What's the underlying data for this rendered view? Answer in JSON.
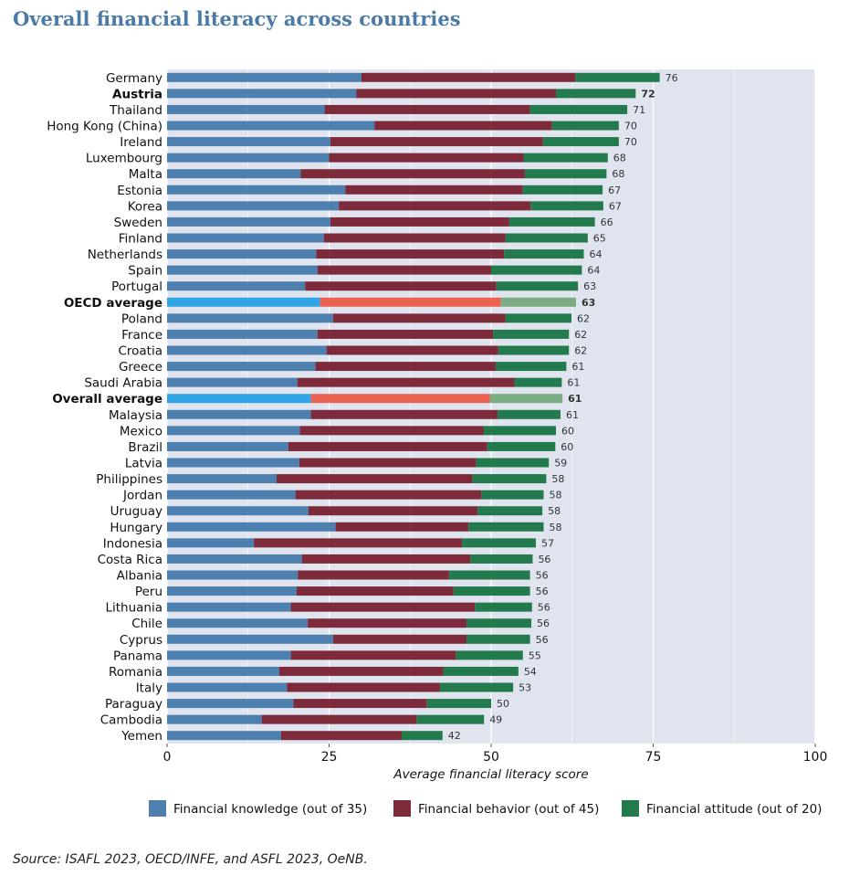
{
  "title": "Overall financial literacy across countries",
  "source": "Source: ISAFL 2023, OECD/INFE, and ASFL 2023, OeNB.",
  "colors": {
    "background_panel": "#dfe4ef",
    "knowledge": "#4d7faf",
    "behavior": "#7d2a3a",
    "attitude": "#237a4c",
    "knowledge_highlight": "#30a6e6",
    "behavior_highlight": "#ec6351",
    "attitude_highlight": "#7bac84"
  },
  "chart_data": {
    "type": "bar",
    "orientation": "horizontal",
    "stacked": true,
    "title": "Overall financial literacy across countries",
    "xlabel": "Average financial literacy score",
    "ylabel": "",
    "xlim": [
      0,
      100
    ],
    "xticks": [
      0,
      25,
      50,
      75,
      100
    ],
    "grid": true,
    "legend_position": "bottom",
    "categories": [
      "Germany",
      "Austria",
      "Thailand",
      "Hong Kong (China)",
      "Ireland",
      "Luxembourg",
      "Malta",
      "Estonia",
      "Korea",
      "Sweden",
      "Finland",
      "Netherlands",
      "Spain",
      "Portugal",
      "OECD average",
      "Poland",
      "France",
      "Croatia",
      "Greece",
      "Saudi Arabia",
      "Overall average",
      "Malaysia",
      "Mexico",
      "Brazil",
      "Latvia",
      "Philippines",
      "Jordan",
      "Uruguay",
      "Hungary",
      "Indonesia",
      "Costa Rica",
      "Albania",
      "Peru",
      "Lithuania",
      "Chile",
      "Cyprus",
      "Panama",
      "Romania",
      "Italy",
      "Paraguay",
      "Cambodia",
      "Yemen"
    ],
    "bold_categories": [
      "Austria",
      "OECD average",
      "Overall average"
    ],
    "highlight_categories": [
      "OECD average",
      "Overall average"
    ],
    "series": [
      {
        "name": "Financial knowledge (out of 35)",
        "values": [
          30,
          29.2,
          24.3,
          32,
          25.2,
          25,
          20.6,
          27.5,
          26.5,
          25.2,
          24.2,
          23,
          23.2,
          21.3,
          23.6,
          25.6,
          23.2,
          24.6,
          22.9,
          20.1,
          22.2,
          22.2,
          20.5,
          18.7,
          20.4,
          16.9,
          19.8,
          21.8,
          26,
          13.4,
          20.8,
          20.2,
          20,
          19.1,
          21.7,
          25.6,
          19.1,
          17.3,
          18.5,
          19.5,
          14.6,
          17.6
        ]
      },
      {
        "name": "Financial behavior (out of 45)",
        "values": [
          33,
          30.8,
          31.7,
          27.4,
          32.8,
          30,
          34.6,
          27.4,
          29.6,
          27.6,
          28,
          29,
          26.8,
          29.5,
          27.9,
          26.6,
          27.1,
          26.5,
          27.8,
          33.5,
          27.6,
          28.8,
          28.3,
          30.7,
          27.3,
          30.2,
          28.7,
          26.1,
          20.5,
          32.1,
          26,
          23.3,
          24.2,
          28.4,
          24.5,
          20.6,
          25.5,
          25.3,
          23.6,
          20.6,
          23.9,
          18.6
        ]
      },
      {
        "name": "Financial attitude (out of 20)",
        "values": [
          13,
          12.3,
          15,
          10.3,
          11.7,
          13,
          12.6,
          12.3,
          11.2,
          13.2,
          12.7,
          12.3,
          14,
          12.6,
          11.6,
          10.2,
          11.7,
          10.9,
          10.9,
          7.3,
          11.2,
          9.7,
          11.2,
          10.5,
          11.2,
          11.4,
          9.6,
          10,
          11.6,
          11.4,
          9.6,
          12.5,
          11.8,
          8.8,
          10,
          9.8,
          10.3,
          11.6,
          11.3,
          9.9,
          10.4,
          6.3
        ]
      }
    ],
    "totals": [
      76,
      72,
      71,
      70,
      70,
      68,
      68,
      67,
      67,
      66,
      65,
      64,
      64,
      63,
      63,
      62,
      62,
      62,
      61,
      61,
      61,
      61,
      60,
      60,
      59,
      58,
      58,
      58,
      58,
      57,
      56,
      56,
      56,
      56,
      56,
      56,
      55,
      54,
      53,
      50,
      49,
      42
    ]
  }
}
